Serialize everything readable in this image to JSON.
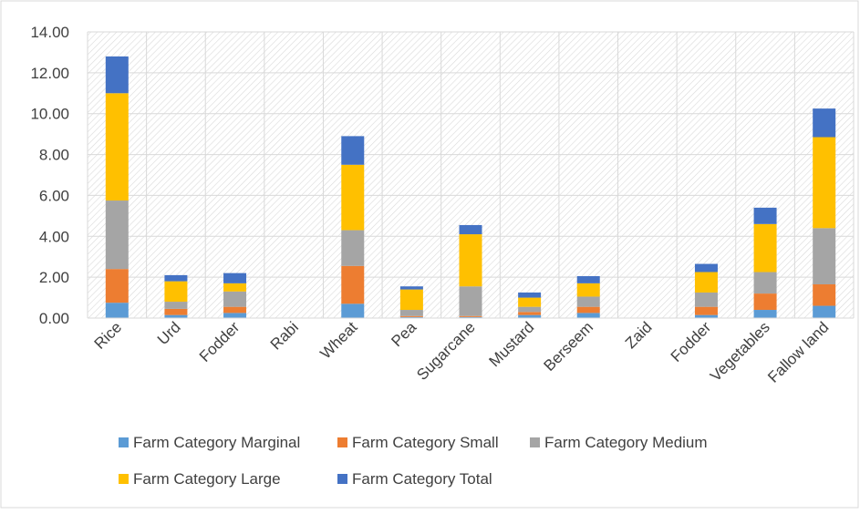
{
  "chart_data": {
    "type": "bar",
    "stacked": true,
    "title": "",
    "xlabel": "",
    "ylabel": "",
    "ylim": [
      0,
      14
    ],
    "y_ticks": [
      "0.00",
      "2.00",
      "4.00",
      "6.00",
      "8.00",
      "10.00",
      "12.00",
      "14.00"
    ],
    "grid": true,
    "legend_position": "bottom",
    "categories": [
      "Rice",
      "Urd",
      "Fodder",
      "Rabi",
      "Wheat",
      "Pea",
      "Sugarcane",
      "Mustard",
      "Berseem",
      "Zaid",
      "Fodder",
      "Vegetables",
      "Fallow land"
    ],
    "series": [
      {
        "name": "Farm Category Marginal",
        "color": "#5B9BD5",
        "values": [
          0.75,
          0.15,
          0.25,
          0,
          0.7,
          0.05,
          0.05,
          0.15,
          0.25,
          0,
          0.15,
          0.4,
          0.6
        ]
      },
      {
        "name": "Farm Category Small",
        "color": "#ED7D31",
        "values": [
          1.65,
          0.3,
          0.3,
          0,
          1.85,
          0.05,
          0.05,
          0.15,
          0.3,
          0,
          0.4,
          0.8,
          1.05
        ]
      },
      {
        "name": "Farm Category Medium",
        "color": "#A5A5A5",
        "values": [
          3.35,
          0.35,
          0.75,
          0,
          1.75,
          0.3,
          1.45,
          0.25,
          0.5,
          0,
          0.7,
          1.05,
          2.75
        ]
      },
      {
        "name": "Farm Category Large",
        "color": "#FFC000",
        "values": [
          5.25,
          1.0,
          0.4,
          0,
          3.2,
          1.0,
          2.55,
          0.45,
          0.65,
          0,
          1.0,
          2.35,
          4.45
        ]
      },
      {
        "name": "Farm Category Total",
        "color": "#4472C4",
        "values": [
          1.8,
          0.3,
          0.5,
          0,
          1.4,
          0.15,
          0.45,
          0.25,
          0.35,
          0,
          0.4,
          0.8,
          1.4
        ]
      }
    ]
  }
}
